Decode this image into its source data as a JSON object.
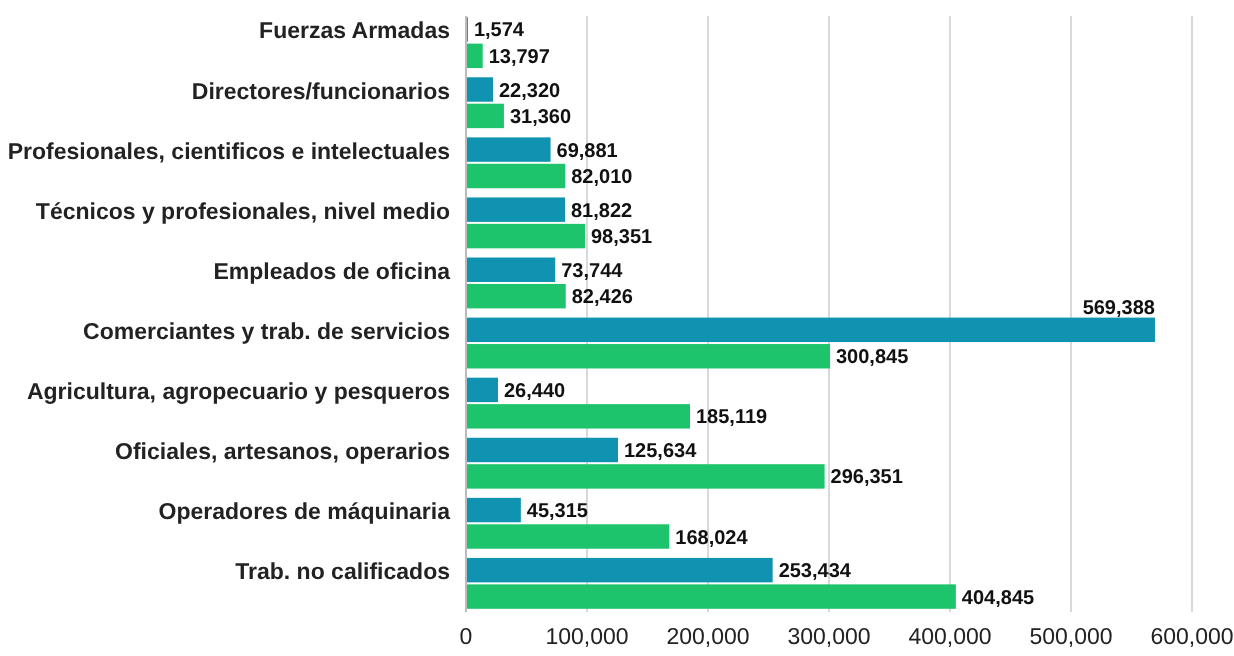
{
  "chart_data": {
    "type": "bar",
    "orientation": "horizontal",
    "categories": [
      "Fuerzas Armadas",
      "Directores/funcionarios",
      "Profesionales, cientificos e intelectuales",
      "Técnicos y profesionales, nivel medio",
      "Empleados de oficina",
      "Comerciantes y trab. de servicios",
      "Agricultura, agropecuario y pesqueros",
      "Oficiales, artesanos, operarios",
      "Operadores de máquinaria",
      "Trab. no calificados"
    ],
    "series": [
      {
        "color": "#0f93b0",
        "values": [
          1574,
          22320,
          69881,
          81822,
          73744,
          569388,
          26440,
          125634,
          45315,
          253434
        ],
        "value_labels": [
          "1,574",
          "22,320",
          "69,881",
          "81,822",
          "73,744",
          "569,388",
          "26,440",
          "125,634",
          "45,315",
          "253,434"
        ]
      },
      {
        "color": "#1ec46b",
        "values": [
          13797,
          31360,
          82010,
          98351,
          82426,
          300845,
          185119,
          296351,
          168024,
          404845
        ],
        "value_labels": [
          "13,797",
          "31,360",
          "82,010",
          "98,351",
          "82,426",
          "300,845",
          "185,119",
          "296,351",
          "168,024",
          "404,845"
        ]
      }
    ],
    "xlim": [
      0,
      600000
    ],
    "xticks": [
      0,
      {
        "value": 100000,
        "label": "100,000"
      },
      {
        "value": 200000,
        "label": "200,000"
      },
      {
        "value": 300000,
        "label": "300,000"
      },
      {
        "value": 400000,
        "label": "400,000"
      },
      {
        "value": 500000,
        "label": "500,000"
      },
      {
        "value": 600000,
        "label": "600,000"
      }
    ],
    "grid": "x"
  }
}
